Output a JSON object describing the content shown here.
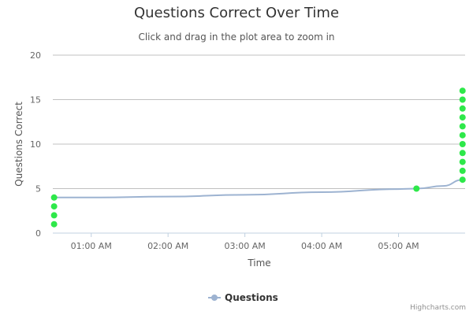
{
  "chart_data": {
    "type": "line",
    "title": "Questions Correct Over Time",
    "subtitle": "Click and drag in the plot area to zoom in",
    "xlabel": "Time",
    "ylabel": "Questions Correct",
    "x_ticks": [
      "01:00 AM",
      "02:00 AM",
      "03:00 AM",
      "04:00 AM",
      "05:00 AM"
    ],
    "xlim": [
      "00:30",
      "05:52"
    ],
    "ylim": [
      0,
      20
    ],
    "y_ticks": [
      0,
      5,
      10,
      15,
      20
    ],
    "grid": true,
    "legend_position": "bottom-center",
    "series": [
      {
        "name": "Questions",
        "line_color": "#9db3d1",
        "marker_color": "#2ee84a",
        "curve": [
          {
            "x": "00:30",
            "y": 4
          },
          {
            "x": "01:00",
            "y": 4
          },
          {
            "x": "02:00",
            "y": 4.1
          },
          {
            "x": "03:00",
            "y": 4.3
          },
          {
            "x": "04:00",
            "y": 4.6
          },
          {
            "x": "05:00",
            "y": 4.95
          },
          {
            "x": "05:14",
            "y": 5
          },
          {
            "x": "05:35",
            "y": 5.3
          },
          {
            "x": "05:50",
            "y": 6
          }
        ],
        "points": [
          {
            "x": "00:31",
            "y": 1
          },
          {
            "x": "00:31",
            "y": 2
          },
          {
            "x": "00:31",
            "y": 3
          },
          {
            "x": "00:31",
            "y": 4
          },
          {
            "x": "05:14",
            "y": 5
          },
          {
            "x": "05:50",
            "y": 6
          },
          {
            "x": "05:50",
            "y": 7
          },
          {
            "x": "05:50",
            "y": 8
          },
          {
            "x": "05:50",
            "y": 9
          },
          {
            "x": "05:50",
            "y": 10
          },
          {
            "x": "05:50",
            "y": 11
          },
          {
            "x": "05:50",
            "y": 12
          },
          {
            "x": "05:50",
            "y": 13
          },
          {
            "x": "05:50",
            "y": 14
          },
          {
            "x": "05:50",
            "y": 15
          },
          {
            "x": "05:50",
            "y": 16
          }
        ]
      }
    ]
  },
  "credits": "Highcharts.com"
}
